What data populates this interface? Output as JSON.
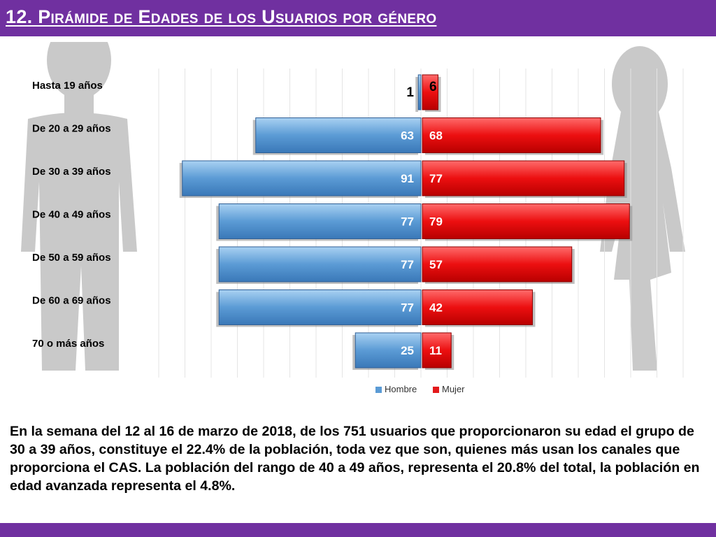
{
  "slide": {
    "title": "12. Pirámide de Edades de los Usuarios por género",
    "description": "En la semana del 12 al 16 de marzo de 2018, de los 751 usuarios  que proporcionaron su edad el grupo de 30 a 39 años, constituye el 22.4% de la población, toda vez que son, quienes más usan los canales que proporciona el CAS. La población del rango de 40 a 49 años, representa el 20.8% del total, la población en edad avanzada representa el 4.8%.",
    "colors": {
      "header": "#7030a0",
      "hombre": "#5b9bd5",
      "mujer": "#e31a1c",
      "silhouette": "#c8c8c8"
    },
    "icons": [
      "male-silhouette-icon",
      "female-silhouette-icon"
    ]
  },
  "chart_data": {
    "type": "bar",
    "orientation": "horizontal-pyramid",
    "title": "",
    "categories": [
      "Hasta 19 años",
      "De 20 a 29 años",
      "De 30 a 39 años",
      "De 40 a 49 años",
      "De 50 a 59 años",
      "De 60 a 69 años",
      "70 o más años"
    ],
    "series": [
      {
        "name": "Hombre",
        "color": "#5b9bd5",
        "values": [
          1,
          63,
          91,
          77,
          77,
          77,
          25
        ]
      },
      {
        "name": "Mujer",
        "color": "#e31a1c",
        "values": [
          6,
          68,
          77,
          79,
          57,
          42,
          11
        ]
      }
    ],
    "xlim": [
      -100,
      100
    ],
    "grid": true,
    "legend": "bottom"
  }
}
